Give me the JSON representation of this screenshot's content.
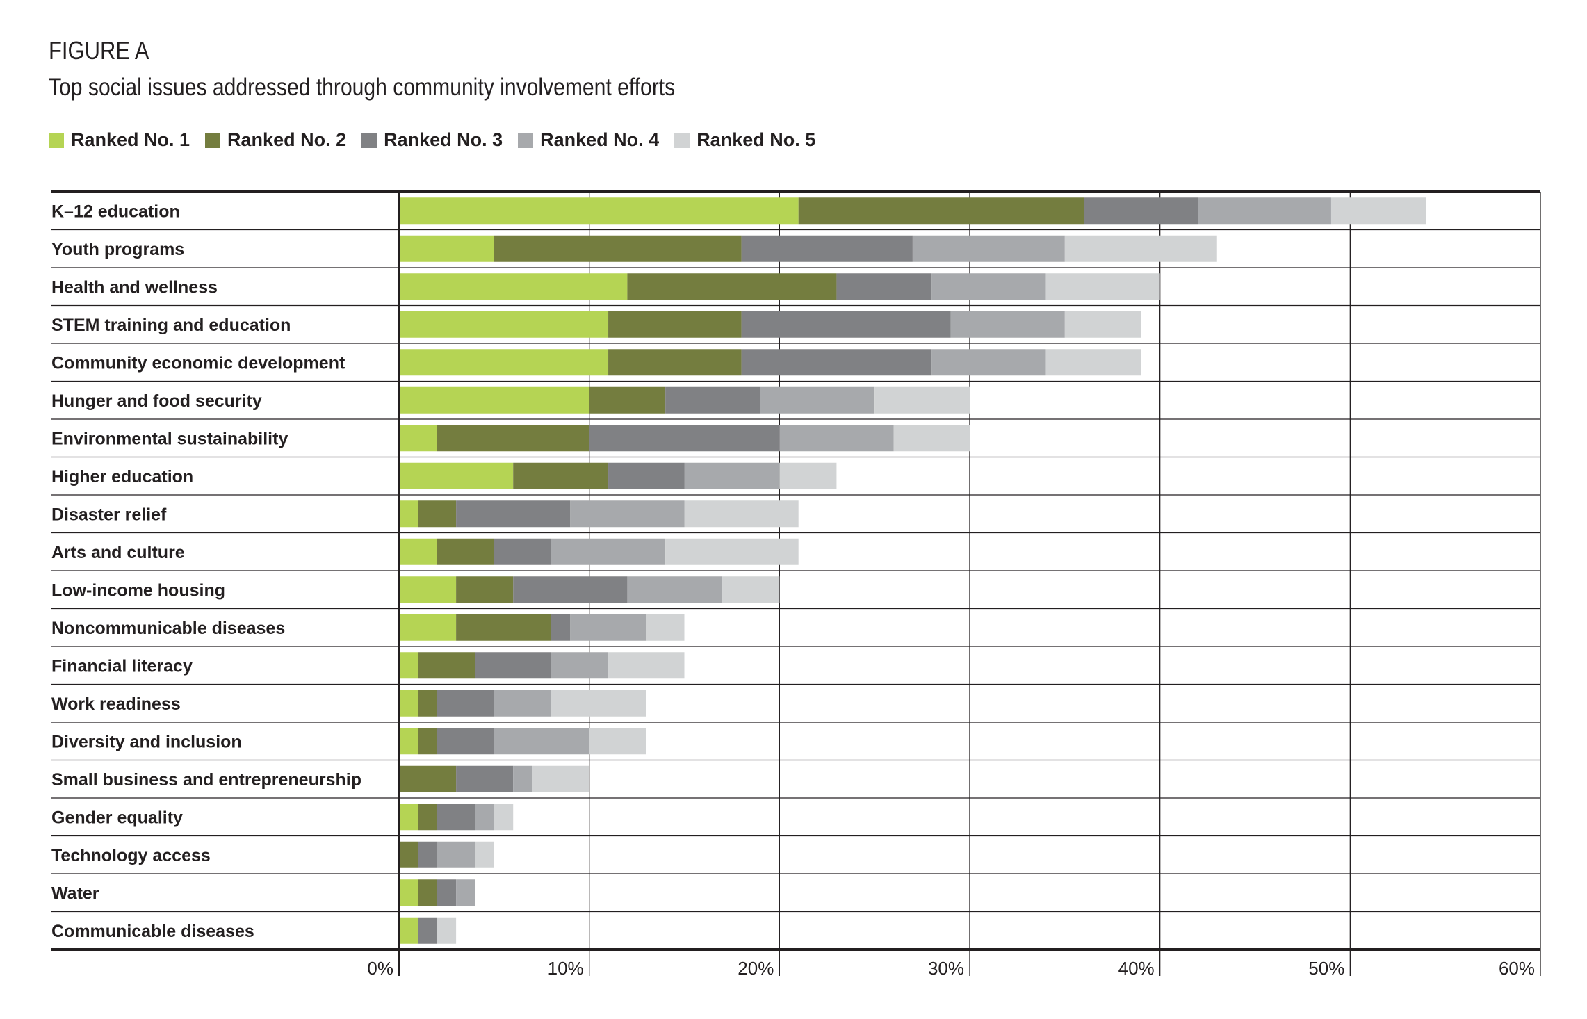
{
  "figure_label": "FIGURE A",
  "figure_title": "Top social issues addressed through community involvement efforts",
  "colors": {
    "rank1": "#b5d454",
    "rank2": "#747d3f",
    "rank3": "#808184",
    "rank4": "#a7a9ac",
    "rank5": "#d1d3d4",
    "grid": "#231f20"
  },
  "chart_data": {
    "type": "bar",
    "orientation": "horizontal",
    "stacked": true,
    "title": "Top social issues addressed through community involvement efforts",
    "xlim": [
      0,
      60
    ],
    "xticks": [
      0,
      10,
      20,
      30,
      40,
      50,
      60
    ],
    "xtick_labels": [
      "0%",
      "10%",
      "20%",
      "30%",
      "40%",
      "50%",
      "60%"
    ],
    "legend_position": "top-left",
    "grid": true,
    "categories": [
      "K–12 education",
      "Youth programs",
      "Health and wellness",
      "STEM training and education",
      "Community economic development",
      "Hunger and food security",
      "Environmental sustainability",
      "Higher education",
      "Disaster relief",
      "Arts and culture",
      "Low-income housing",
      "Noncommunicable diseases",
      "Financial literacy",
      "Work readiness",
      "Diversity and inclusion",
      "Small business and entrepreneurship",
      "Gender equality",
      "Technology access",
      "Water",
      "Communicable diseases"
    ],
    "series": [
      {
        "name": "Ranked No. 1",
        "color": "#b5d454",
        "values": [
          21,
          5,
          12,
          11,
          11,
          10,
          2,
          6,
          1,
          2,
          3,
          3,
          1,
          1,
          1,
          0,
          1,
          0,
          1,
          1
        ]
      },
      {
        "name": "Ranked No. 2",
        "color": "#747d3f",
        "values": [
          15,
          13,
          11,
          7,
          7,
          4,
          8,
          5,
          2,
          3,
          3,
          5,
          3,
          1,
          1,
          3,
          1,
          1,
          1,
          0
        ]
      },
      {
        "name": "Ranked No. 3",
        "color": "#808184",
        "values": [
          6,
          9,
          5,
          11,
          10,
          5,
          10,
          4,
          6,
          3,
          6,
          1,
          4,
          3,
          3,
          3,
          2,
          1,
          1,
          1
        ]
      },
      {
        "name": "Ranked No. 4",
        "color": "#a7a9ac",
        "values": [
          7,
          8,
          6,
          6,
          6,
          6,
          6,
          5,
          6,
          6,
          5,
          4,
          3,
          3,
          5,
          1,
          1,
          2,
          1,
          0
        ]
      },
      {
        "name": "Ranked No. 5",
        "color": "#d1d3d4",
        "values": [
          5,
          8,
          6,
          4,
          5,
          5,
          4,
          3,
          6,
          7,
          3,
          2,
          4,
          5,
          3,
          3,
          1,
          1,
          0,
          1
        ]
      }
    ]
  }
}
